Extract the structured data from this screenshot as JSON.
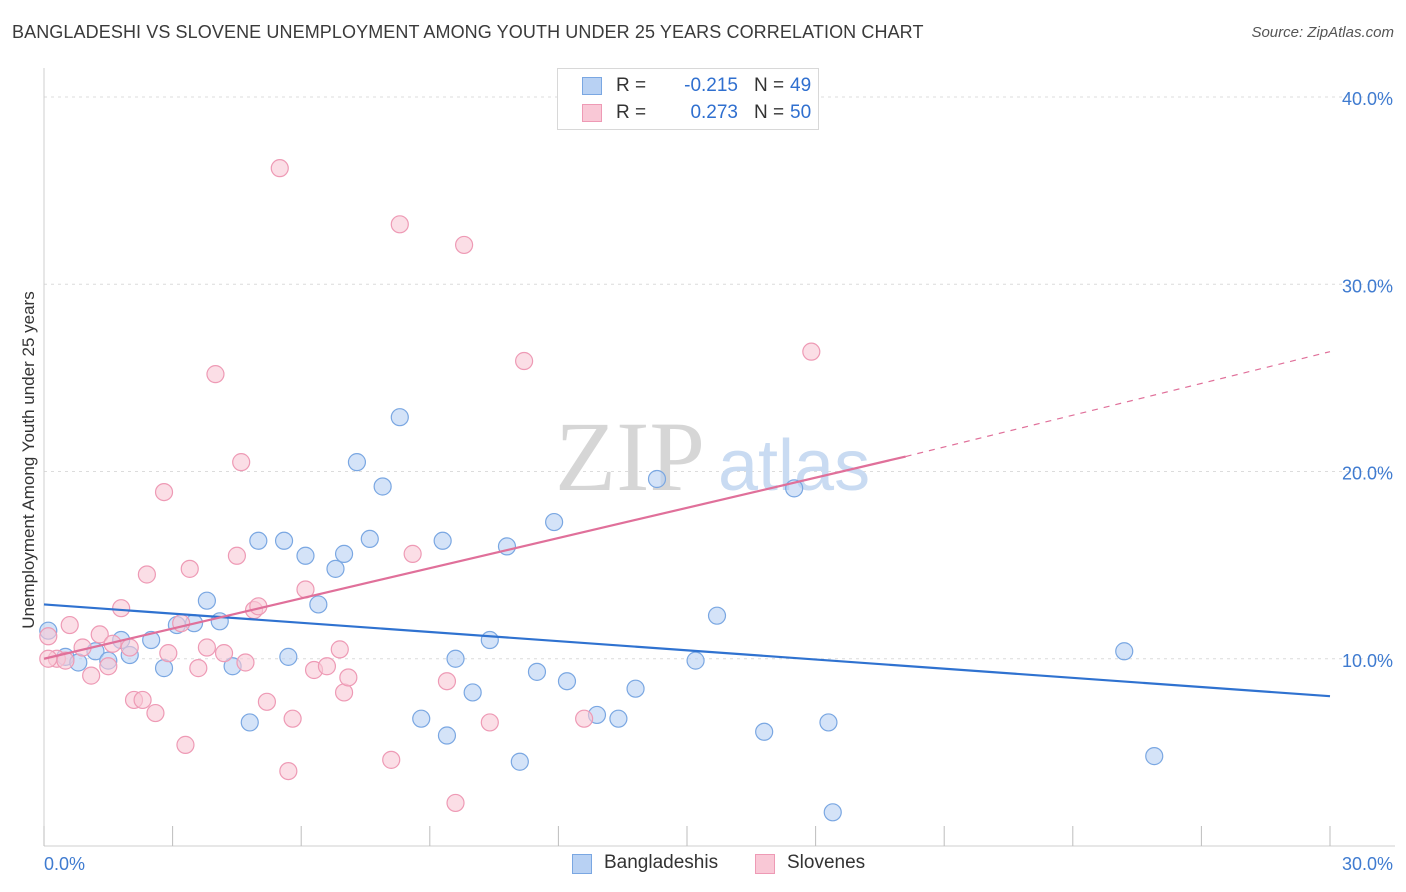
{
  "title": "BANGLADESHI VS SLOVENE UNEMPLOYMENT AMONG YOUTH UNDER 25 YEARS CORRELATION CHART",
  "source": "Source: ZipAtlas.com",
  "watermark": {
    "zip": "ZIP",
    "atlas": "atlas"
  },
  "legend": {
    "r_label": "R =",
    "n_label": "N =",
    "items": [
      {
        "name": "Bangladeshis",
        "r": "-0.215",
        "n": "49",
        "fill": "#b8d1f3",
        "stroke": "#7aa7e2"
      },
      {
        "name": "Slovenes",
        "r": "0.273",
        "n": "50",
        "fill": "#f9c8d6",
        "stroke": "#ee9ab5"
      }
    ]
  },
  "chart_data": {
    "type": "scatter",
    "title": "BANGLADESHI VS SLOVENE UNEMPLOYMENT AMONG YOUTH UNDER 25 YEARS CORRELATION CHART",
    "xlabel": "",
    "ylabel": "Unemployment Among Youth under 25 years",
    "xlim": [
      0,
      30
    ],
    "ylim": [
      0,
      40
    ],
    "x_tick_labels": [
      "0.0%",
      "30.0%"
    ],
    "y_ticks": [
      10,
      20,
      30,
      40
    ],
    "y_tick_labels": [
      "10.0%",
      "20.0%",
      "30.0%",
      "40.0%"
    ],
    "grid": true,
    "legend_position": "top-center",
    "series": [
      {
        "name": "Bangladeshis",
        "color": "#7aa7e2",
        "fill": "#b8d1f3",
        "trend_color": "#2f72d0",
        "trend": {
          "x": [
            0,
            30
          ],
          "y": [
            12.9,
            8.0
          ]
        },
        "points": [
          [
            0.1,
            11.5
          ],
          [
            0.5,
            10.1
          ],
          [
            0.8,
            9.8
          ],
          [
            1.2,
            10.4
          ],
          [
            1.5,
            9.9
          ],
          [
            1.8,
            11.0
          ],
          [
            2.0,
            10.2
          ],
          [
            2.5,
            11.0
          ],
          [
            2.8,
            9.5
          ],
          [
            3.1,
            11.8
          ],
          [
            3.5,
            11.9
          ],
          [
            3.8,
            13.1
          ],
          [
            4.1,
            12.0
          ],
          [
            4.4,
            9.6
          ],
          [
            4.8,
            6.6
          ],
          [
            5.0,
            16.3
          ],
          [
            5.6,
            16.3
          ],
          [
            5.7,
            10.1
          ],
          [
            6.1,
            15.5
          ],
          [
            6.4,
            12.9
          ],
          [
            6.8,
            14.8
          ],
          [
            7.0,
            15.6
          ],
          [
            7.3,
            20.5
          ],
          [
            7.6,
            16.4
          ],
          [
            7.9,
            19.2
          ],
          [
            8.3,
            22.9
          ],
          [
            8.8,
            6.8
          ],
          [
            9.3,
            16.3
          ],
          [
            9.4,
            5.9
          ],
          [
            9.6,
            10.0
          ],
          [
            10.0,
            8.2
          ],
          [
            10.4,
            11.0
          ],
          [
            10.8,
            16.0
          ],
          [
            11.1,
            4.5
          ],
          [
            11.5,
            9.3
          ],
          [
            11.9,
            17.3
          ],
          [
            12.2,
            8.8
          ],
          [
            12.9,
            7.0
          ],
          [
            13.4,
            6.8
          ],
          [
            13.8,
            8.4
          ],
          [
            14.3,
            19.6
          ],
          [
            15.2,
            9.9
          ],
          [
            15.7,
            12.3
          ],
          [
            16.8,
            6.1
          ],
          [
            17.5,
            19.1
          ],
          [
            18.3,
            6.6
          ],
          [
            18.4,
            1.8
          ],
          [
            25.2,
            10.4
          ],
          [
            25.9,
            4.8
          ]
        ]
      },
      {
        "name": "Slovenes",
        "color": "#ee9ab5",
        "fill": "#f9c8d6",
        "trend_color": "#e0709a",
        "trend": {
          "x": [
            0,
            20.1
          ],
          "y": [
            10.0,
            20.8
          ]
        },
        "trend_dashed_extension": {
          "x": [
            20.1,
            30
          ],
          "y": [
            20.8,
            26.4
          ]
        },
        "points": [
          [
            0.1,
            11.2
          ],
          [
            0.3,
            10.0
          ],
          [
            0.5,
            9.9
          ],
          [
            0.6,
            11.8
          ],
          [
            0.9,
            10.6
          ],
          [
            1.1,
            9.1
          ],
          [
            1.3,
            11.3
          ],
          [
            1.5,
            9.6
          ],
          [
            1.6,
            10.8
          ],
          [
            1.8,
            12.7
          ],
          [
            2.0,
            10.6
          ],
          [
            2.1,
            7.8
          ],
          [
            2.3,
            7.8
          ],
          [
            2.4,
            14.5
          ],
          [
            2.6,
            7.1
          ],
          [
            2.8,
            18.9
          ],
          [
            2.9,
            10.3
          ],
          [
            3.2,
            11.9
          ],
          [
            3.3,
            5.4
          ],
          [
            3.4,
            14.8
          ],
          [
            3.6,
            9.5
          ],
          [
            3.8,
            10.6
          ],
          [
            4.0,
            25.2
          ],
          [
            4.2,
            10.3
          ],
          [
            4.5,
            15.5
          ],
          [
            4.6,
            20.5
          ],
          [
            4.7,
            9.8
          ],
          [
            4.9,
            12.6
          ],
          [
            5.0,
            12.8
          ],
          [
            5.2,
            7.7
          ],
          [
            5.5,
            36.2
          ],
          [
            5.7,
            4.0
          ],
          [
            5.8,
            6.8
          ],
          [
            6.1,
            13.7
          ],
          [
            6.3,
            9.4
          ],
          [
            6.6,
            9.6
          ],
          [
            6.9,
            10.5
          ],
          [
            7.0,
            8.2
          ],
          [
            7.1,
            9.0
          ],
          [
            8.1,
            4.6
          ],
          [
            8.3,
            33.2
          ],
          [
            8.6,
            15.6
          ],
          [
            9.4,
            8.8
          ],
          [
            9.6,
            2.3
          ],
          [
            9.8,
            32.1
          ],
          [
            10.4,
            6.6
          ],
          [
            11.2,
            25.9
          ],
          [
            12.6,
            6.8
          ],
          [
            17.9,
            26.4
          ],
          [
            0.1,
            10.0
          ]
        ]
      }
    ]
  }
}
